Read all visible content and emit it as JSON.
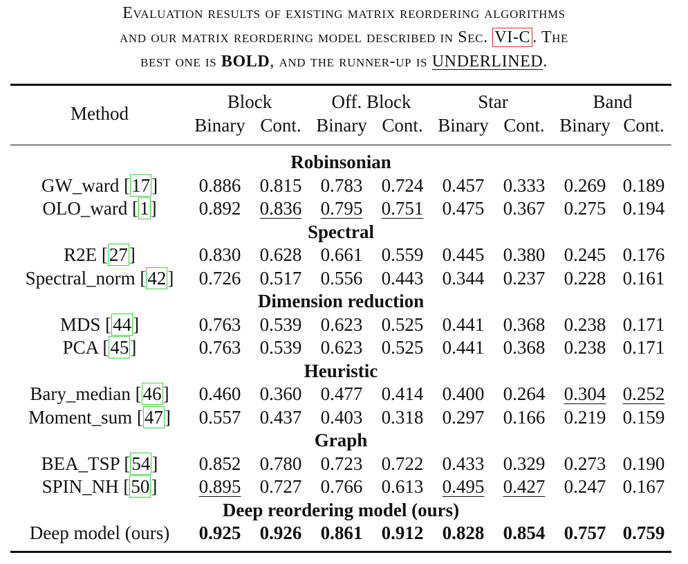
{
  "caption": {
    "line1": "Evaluation results of existing matrix reordering algorithms",
    "line2_pre": "and our matrix reordering model described in Sec.",
    "line2_ref": "VI-C",
    "line2_post": ". The",
    "line3_pre": "best one is",
    "line3_bold": "BOLD",
    "line3_mid": ", and the runner-up is",
    "line3_ul": "UNDERLINED",
    "line3_post": "."
  },
  "header": {
    "method": "Method",
    "groups": [
      "Block",
      "Off. Block",
      "Star",
      "Band"
    ],
    "subcols": [
      "Binary",
      "Cont.",
      "Binary",
      "Cont.",
      "Binary",
      "Cont.",
      "Binary",
      "Cont."
    ]
  },
  "sections": [
    {
      "title": "Robinsonian",
      "rows": [
        {
          "name": "GW_ward ",
          "cite": "17",
          "values": [
            "0.886",
            "0.815",
            "0.783",
            "0.724",
            "0.457",
            "0.333",
            "0.269",
            "0.189"
          ],
          "best": [],
          "runner": []
        },
        {
          "name": "OLO_ward ",
          "cite": "1",
          "values": [
            "0.892",
            "0.836",
            "0.795",
            "0.751",
            "0.475",
            "0.367",
            "0.275",
            "0.194"
          ],
          "best": [],
          "runner": [
            1,
            2,
            3
          ]
        }
      ]
    },
    {
      "title": "Spectral",
      "rows": [
        {
          "name": "R2E ",
          "cite": "27",
          "values": [
            "0.830",
            "0.628",
            "0.661",
            "0.559",
            "0.445",
            "0.380",
            "0.245",
            "0.176"
          ],
          "best": [],
          "runner": []
        },
        {
          "name": "Spectral_norm ",
          "cite": "42",
          "values": [
            "0.726",
            "0.517",
            "0.556",
            "0.443",
            "0.344",
            "0.237",
            "0.228",
            "0.161"
          ],
          "best": [],
          "runner": []
        }
      ]
    },
    {
      "title": "Dimension reduction",
      "rows": [
        {
          "name": "MDS ",
          "cite": "44",
          "values": [
            "0.763",
            "0.539",
            "0.623",
            "0.525",
            "0.441",
            "0.368",
            "0.238",
            "0.171"
          ],
          "best": [],
          "runner": []
        },
        {
          "name": "PCA ",
          "cite": "45",
          "values": [
            "0.763",
            "0.539",
            "0.623",
            "0.525",
            "0.441",
            "0.368",
            "0.238",
            "0.171"
          ],
          "best": [],
          "runner": []
        }
      ]
    },
    {
      "title": "Heuristic",
      "rows": [
        {
          "name": "Bary_median ",
          "cite": "46",
          "values": [
            "0.460",
            "0.360",
            "0.477",
            "0.414",
            "0.400",
            "0.264",
            "0.304",
            "0.252"
          ],
          "best": [],
          "runner": [
            6,
            7
          ]
        },
        {
          "name": "Moment_sum ",
          "cite": "47",
          "values": [
            "0.557",
            "0.437",
            "0.403",
            "0.318",
            "0.297",
            "0.166",
            "0.219",
            "0.159"
          ],
          "best": [],
          "runner": []
        }
      ]
    },
    {
      "title": "Graph",
      "rows": [
        {
          "name": "BEA_TSP ",
          "cite": "54",
          "values": [
            "0.852",
            "0.780",
            "0.723",
            "0.722",
            "0.433",
            "0.329",
            "0.273",
            "0.190"
          ],
          "best": [],
          "runner": []
        },
        {
          "name": "SPIN_NH ",
          "cite": "50",
          "values": [
            "0.895",
            "0.727",
            "0.766",
            "0.613",
            "0.495",
            "0.427",
            "0.247",
            "0.167"
          ],
          "best": [],
          "runner": [
            0,
            4,
            5
          ]
        }
      ]
    },
    {
      "title": "Deep reordering model (ours)",
      "rows": [
        {
          "name": "Deep model (ours)",
          "cite": "",
          "values": [
            "0.925",
            "0.926",
            "0.861",
            "0.912",
            "0.828",
            "0.854",
            "0.757",
            "0.759"
          ],
          "best": [
            0,
            1,
            2,
            3,
            4,
            5,
            6,
            7
          ],
          "runner": []
        }
      ]
    }
  ]
}
